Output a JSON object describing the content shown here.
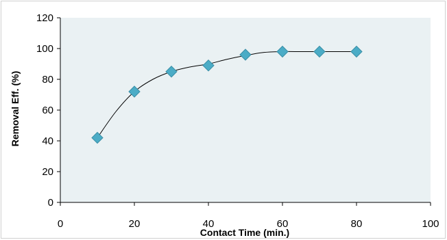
{
  "chart_data": {
    "type": "scatter",
    "title": "",
    "xlabel": "Contact Time (min.)",
    "ylabel": "Removal Eff. (%)",
    "xlim": [
      0,
      100
    ],
    "ylim": [
      0,
      120
    ],
    "xticks": [
      0,
      20,
      40,
      60,
      80,
      100
    ],
    "yticks": [
      0,
      20,
      40,
      60,
      80,
      100,
      120
    ],
    "grid": false,
    "legend": "none",
    "colors": {
      "plot_background": "#EAF1F3",
      "marker": "#4BACC6",
      "marker_edge": "#3B8FA6",
      "trendline": "#000000",
      "axis": "#000000",
      "frame": "#D0D0D0"
    },
    "series": [
      {
        "x": [
          10,
          20,
          30,
          40,
          50,
          60,
          70,
          80
        ],
        "y": [
          42,
          72,
          85,
          89,
          96,
          98,
          98,
          98
        ]
      }
    ],
    "trendline": {
      "x": [
        10,
        15,
        20,
        25,
        30,
        35,
        40,
        45,
        50,
        55,
        60,
        65,
        70,
        75,
        80
      ],
      "y": [
        42,
        59,
        72,
        80,
        85,
        88,
        90,
        93,
        95.5,
        97.5,
        98,
        98,
        98,
        98,
        98
      ]
    }
  }
}
